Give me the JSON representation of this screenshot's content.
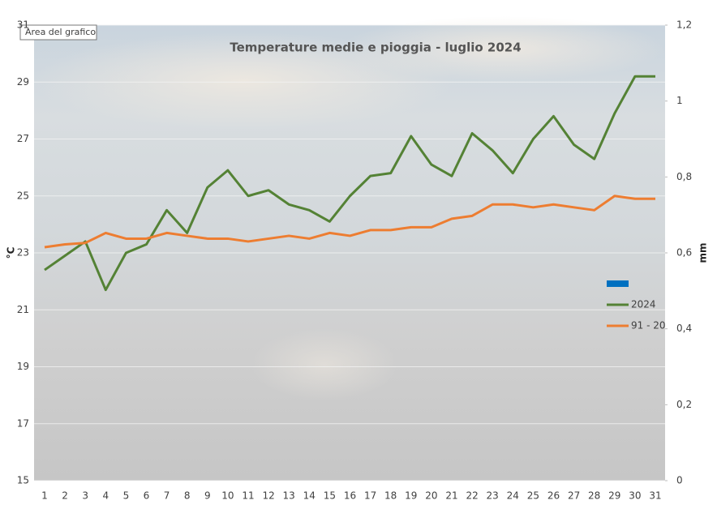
{
  "chart_data": {
    "type": "line",
    "title": "Temperature medie e pioggia - luglio 2024",
    "tooltip": "Area del grafico",
    "y_label": "°C",
    "y2_label": "mm",
    "categories": [
      "1",
      "2",
      "3",
      "4",
      "5",
      "6",
      "7",
      "8",
      "9",
      "10",
      "11",
      "12",
      "13",
      "14",
      "15",
      "16",
      "17",
      "18",
      "19",
      "20",
      "21",
      "22",
      "23",
      "24",
      "25",
      "26",
      "27",
      "28",
      "29",
      "30",
      "31"
    ],
    "series": [
      {
        "color": "#0070c0",
        "axis": "y2",
        "kind": "bar",
        "values": [
          0,
          0,
          0,
          0,
          0,
          0,
          0,
          0,
          0,
          0,
          0,
          0,
          0,
          0,
          0,
          0,
          0,
          0,
          0,
          0,
          0,
          0,
          0,
          0,
          0,
          0,
          0,
          0,
          0,
          0,
          0
        ]
      },
      {
        "name": "2024",
        "color": "#548235",
        "values": [
          22.4,
          22.9,
          23.4,
          21.7,
          23.0,
          23.3,
          24.5,
          23.7,
          25.3,
          25.9,
          25.0,
          25.2,
          24.7,
          24.5,
          24.1,
          25.0,
          25.7,
          25.8,
          27.1,
          26.1,
          25.7,
          27.2,
          26.6,
          25.8,
          27.0,
          27.8,
          26.8,
          26.3,
          27.9,
          29.2,
          29.2
        ]
      },
      {
        "name": "91 - 20",
        "color": "#ed7d31",
        "values": [
          23.2,
          23.3,
          23.35,
          23.7,
          23.5,
          23.5,
          23.7,
          23.6,
          23.5,
          23.5,
          23.4,
          23.5,
          23.6,
          23.5,
          23.7,
          23.6,
          23.8,
          23.8,
          23.9,
          23.9,
          24.2,
          24.3,
          24.7,
          24.7,
          24.6,
          24.7,
          24.6,
          24.5,
          25.0,
          24.9,
          24.9
        ]
      }
    ],
    "ylim": [
      15,
      31
    ],
    "yticks": [
      15,
      17,
      19,
      21,
      23,
      25,
      27,
      29,
      31
    ],
    "y2lim": [
      0,
      1.2
    ],
    "y2ticks": [
      0,
      {
        "value": 0.2,
        "label": "0,2"
      },
      {
        "value": 0.4,
        "label": "0,4"
      },
      {
        "value": 0.6,
        "label": "0,6"
      },
      {
        "value": 0.8,
        "label": "0,8"
      },
      1,
      {
        "value": 1.2,
        "label": "1,2"
      }
    ],
    "grid": true,
    "legend": "right"
  }
}
